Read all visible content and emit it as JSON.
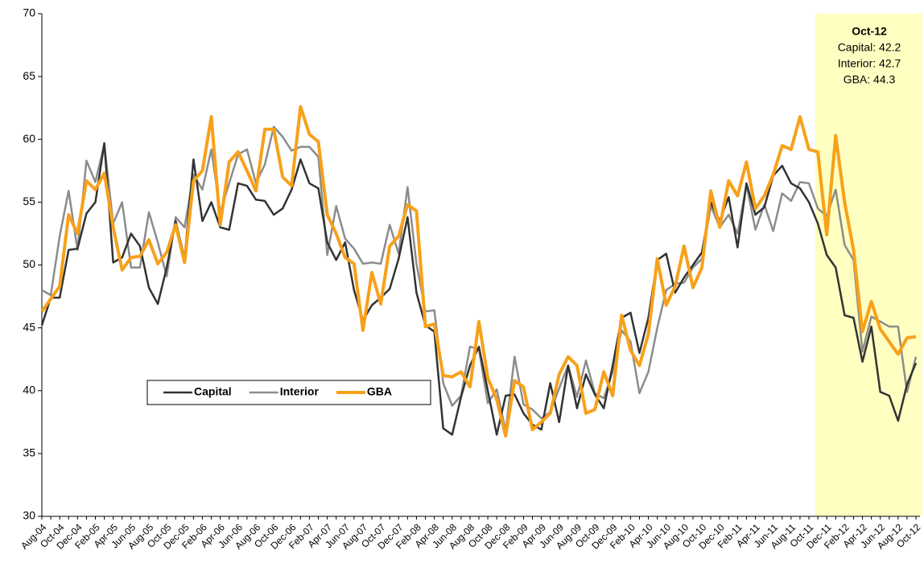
{
  "chart_data": {
    "type": "line",
    "categories": [
      "Aug-04",
      null,
      "Oct-04",
      null,
      "Dec-04",
      null,
      "Feb-05",
      null,
      "Apr-05",
      null,
      "Jun-05",
      null,
      "Aug-05",
      null,
      "Oct-05",
      null,
      "Dec-05",
      null,
      "Feb-06",
      null,
      "Apr-06",
      null,
      "Jun-06",
      null,
      "Aug-06",
      null,
      "Oct-06",
      null,
      "Dec-06",
      null,
      "Feb-07",
      null,
      "Apr-07",
      null,
      "Jun-07",
      null,
      "Aug-07",
      null,
      "Oct-07",
      null,
      "Dec-07",
      null,
      "Feb-08",
      null,
      "Apr-08",
      null,
      "Jun-08",
      null,
      "Aug-08",
      null,
      "Oct-08",
      null,
      "Dec-08",
      null,
      "Feb-09",
      null,
      "Apr-09",
      null,
      "Jun-09",
      null,
      "Aug-09",
      null,
      "Oct-09",
      null,
      "Dec-09",
      null,
      "Feb-10",
      null,
      "Apr-10",
      null,
      "Jun-10",
      null,
      "Aug-10",
      null,
      "Oct-10",
      null,
      "Dec-10",
      null,
      "Feb-11",
      null,
      "Apr-11",
      null,
      "Jun-11",
      null,
      "Aug-11",
      null,
      "Oct-11",
      null,
      "Dec-11",
      null,
      "Feb-12",
      null,
      "Apr-12",
      null,
      "Jun-12",
      null,
      "Aug-12",
      null,
      "Oct-12"
    ],
    "series": [
      {
        "name": "Capital",
        "color": "#333333",
        "values": [
          45.2,
          47.4,
          47.4,
          51.2,
          51.3,
          54.1,
          55.0,
          59.7,
          50.2,
          50.6,
          52.5,
          51.5,
          48.2,
          46.9,
          49.8,
          53.5,
          50.5,
          58.4,
          53.5,
          55.0,
          53.0,
          52.8,
          56.5,
          56.3,
          55.2,
          55.1,
          54.0,
          54.5,
          56.0,
          58.4,
          56.5,
          56.1,
          51.8,
          50.4,
          51.8,
          48.0,
          45.6,
          46.8,
          47.4,
          48.1,
          50.5,
          53.8,
          47.8,
          45.2,
          44.7,
          37.0,
          36.5,
          39.5,
          42.0,
          43.5,
          40.0,
          36.5,
          39.6,
          39.7,
          38.2,
          37.3,
          36.9,
          40.6,
          37.5,
          42.0,
          38.6,
          41.3,
          39.7,
          38.6,
          42.0,
          45.8,
          46.2,
          43.0,
          45.8,
          50.4,
          50.9,
          47.8,
          49.0,
          50.0,
          51.0,
          55.0,
          53.5,
          55.4,
          51.4,
          56.5,
          54.0,
          54.6,
          57.1,
          57.9,
          56.5,
          56.1,
          55.0,
          53.3,
          50.8,
          49.8,
          46.0,
          45.8,
          42.3,
          45.1,
          39.9,
          39.6,
          37.6,
          40.5,
          42.2
        ]
      },
      {
        "name": "Interior",
        "color": "#8c8c8c",
        "values": [
          48.0,
          47.6,
          52.3,
          55.9,
          51.2,
          58.3,
          56.6,
          59.6,
          53.3,
          55.0,
          49.8,
          49.8,
          54.2,
          51.8,
          49.1,
          53.8,
          53.0,
          57.2,
          56.0,
          59.2,
          54.2,
          56.5,
          58.8,
          59.2,
          56.5,
          58.0,
          61.0,
          60.2,
          59.1,
          59.4,
          59.4,
          58.6,
          50.8,
          54.7,
          52.1,
          51.3,
          50.1,
          50.2,
          50.1,
          53.2,
          50.9,
          56.2,
          50.1,
          46.3,
          46.4,
          40.6,
          38.8,
          39.6,
          43.5,
          43.3,
          39.0,
          40.1,
          36.8,
          42.7,
          38.9,
          38.5,
          37.8,
          38.3,
          40.2,
          42.0,
          39.5,
          42.4,
          39.8,
          39.4,
          41.5,
          44.8,
          43.9,
          39.8,
          41.5,
          45.0,
          48.0,
          48.5,
          48.6,
          49.8,
          50.5,
          54.7,
          53.0,
          54.0,
          52.5,
          56.4,
          52.8,
          54.8,
          52.7,
          55.7,
          55.1,
          56.6,
          56.5,
          54.5,
          53.9,
          56.0,
          51.6,
          50.4,
          43.1,
          45.9,
          45.5,
          45.1,
          45.1,
          39.9,
          42.7
        ]
      },
      {
        "name": "GBA",
        "color": "#f7a11a",
        "values": [
          46.3,
          47.3,
          48.3,
          54.0,
          52.5,
          56.7,
          56.0,
          57.3,
          53.0,
          49.6,
          50.6,
          50.7,
          52.0,
          50.1,
          51.0,
          53.2,
          50.2,
          56.7,
          57.5,
          61.8,
          53.2,
          58.2,
          59.0,
          57.5,
          55.9,
          60.8,
          60.8,
          57.0,
          56.3,
          62.6,
          60.4,
          59.8,
          54.0,
          52.5,
          50.6,
          50.1,
          44.8,
          49.4,
          46.9,
          51.5,
          52.3,
          54.8,
          54.3,
          45.1,
          45.3,
          41.2,
          41.1,
          41.5,
          40.3,
          45.5,
          41.0,
          39.3,
          36.4,
          40.8,
          40.3,
          36.9,
          37.5,
          38.2,
          41.3,
          42.7,
          42.0,
          38.2,
          38.5,
          41.5,
          39.6,
          46.0,
          43.2,
          42.0,
          44.5,
          50.5,
          46.8,
          48.3,
          51.5,
          48.2,
          49.8,
          55.9,
          53.0,
          56.7,
          55.5,
          58.2,
          54.5,
          55.5,
          57.2,
          59.5,
          59.2,
          61.8,
          59.2,
          59.0,
          52.4,
          60.3,
          55.0,
          51.2,
          44.7,
          47.1,
          44.9,
          43.9,
          42.9,
          44.2,
          44.3
        ]
      }
    ],
    "ylim": [
      30,
      70
    ],
    "yticks": [
      30,
      35,
      40,
      45,
      50,
      55,
      60,
      65,
      70
    ],
    "grid": false,
    "annotation": {
      "title": "Oct-12",
      "lines": [
        "Capital: 42.2",
        "Interior: 42.7",
        "GBA: 44.3"
      ]
    }
  }
}
